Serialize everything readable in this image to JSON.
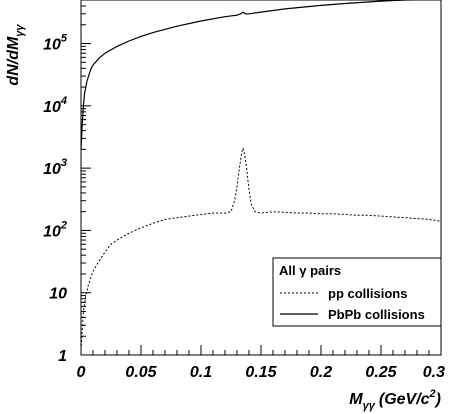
{
  "chart_data": {
    "type": "line",
    "title": "",
    "ylabel": "dN/dM",
    "ylabel_sub": "γγ",
    "xlabel": "M",
    "xlabel_sub": "γγ",
    "xlabel_unit": "(GeV/c",
    "xlabel_unit_sup": "2",
    "xlabel_unit_close": ")",
    "xlim": [
      0,
      0.3
    ],
    "ylim": [
      1,
      500000
    ],
    "yscale": "log",
    "grid": false,
    "x_ticks": [
      {
        "value": 0,
        "label": "0"
      },
      {
        "value": 0.05,
        "label": "0.05"
      },
      {
        "value": 0.1,
        "label": "0.1"
      },
      {
        "value": 0.15,
        "label": "0.15"
      },
      {
        "value": 0.2,
        "label": "0.2"
      },
      {
        "value": 0.25,
        "label": "0.25"
      },
      {
        "value": 0.3,
        "label": "0.3"
      }
    ],
    "y_ticks": [
      {
        "value": 1,
        "base": "1",
        "exp": ""
      },
      {
        "value": 10,
        "base": "10",
        "exp": ""
      },
      {
        "value": 100,
        "base": "10",
        "exp": "2"
      },
      {
        "value": 1000,
        "base": "10",
        "exp": "3"
      },
      {
        "value": 10000,
        "base": "10",
        "exp": "4"
      },
      {
        "value": 100000,
        "base": "10",
        "exp": "5"
      }
    ],
    "legend": {
      "placement": "bottom-right",
      "header": "All γ pairs",
      "entries": [
        "pp collisions",
        "PbPb collisions"
      ]
    },
    "series": [
      {
        "name": "pp collisions",
        "style": "dashed",
        "x": [
          0,
          0.002,
          0.004,
          0.006,
          0.008,
          0.01,
          0.015,
          0.02,
          0.025,
          0.03,
          0.04,
          0.05,
          0.06,
          0.07,
          0.08,
          0.09,
          0.1,
          0.11,
          0.12,
          0.125,
          0.128,
          0.13,
          0.132,
          0.134,
          0.135,
          0.136,
          0.138,
          0.14,
          0.142,
          0.145,
          0.15,
          0.16,
          0.17,
          0.18,
          0.19,
          0.2,
          0.21,
          0.22,
          0.23,
          0.24,
          0.25,
          0.26,
          0.27,
          0.28,
          0.29,
          0.3
        ],
        "y": [
          1.2,
          5,
          9,
          13,
          17,
          22,
          32,
          45,
          60,
          70,
          90,
          110,
          130,
          150,
          160,
          170,
          180,
          190,
          190,
          200,
          300,
          500,
          1000,
          1800,
          2100,
          1800,
          1000,
          450,
          260,
          200,
          190,
          200,
          195,
          190,
          190,
          185,
          185,
          180,
          175,
          175,
          170,
          165,
          160,
          155,
          150,
          140
        ]
      },
      {
        "name": "PbPb collisions",
        "style": "solid",
        "x": [
          0,
          0.001,
          0.002,
          0.003,
          0.005,
          0.008,
          0.01,
          0.015,
          0.02,
          0.03,
          0.04,
          0.05,
          0.06,
          0.08,
          0.1,
          0.12,
          0.13,
          0.133,
          0.135,
          0.137,
          0.14,
          0.15,
          0.17,
          0.2,
          0.22,
          0.25,
          0.27,
          0.3
        ],
        "y": [
          2000,
          5000,
          10000,
          16000,
          25000,
          38000,
          45000,
          58000,
          70000,
          90000,
          110000,
          130000,
          150000,
          190000,
          230000,
          270000,
          285000,
          300000,
          320000,
          300000,
          300000,
          320000,
          360000,
          410000,
          440000,
          480000,
          500000,
          510000
        ]
      }
    ]
  }
}
